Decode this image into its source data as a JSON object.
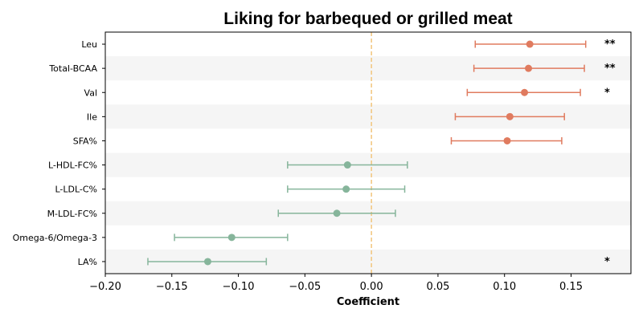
{
  "chart_data": {
    "type": "scatter",
    "title": "Liking for barbequed or grilled meat",
    "xlabel": "Coefficient",
    "ylabel": "",
    "xlim": [
      -0.2,
      0.195
    ],
    "xticks": [
      -0.2,
      -0.15,
      -0.1,
      -0.05,
      0.0,
      0.05,
      0.1,
      0.15
    ],
    "xtick_labels": [
      "−0.20",
      "−0.15",
      "−0.10",
      "−0.05",
      "0.00",
      "0.05",
      "0.10",
      "0.15"
    ],
    "reference_line": 0.0,
    "row_striping": true,
    "colors": {
      "positive": "#E07B5F",
      "negative": "#86B59B",
      "reference": "#F2C57C",
      "stripe": "#F5F5F5"
    },
    "rows": [
      {
        "label": "Leu",
        "estimate": 0.119,
        "lower": 0.078,
        "upper": 0.161,
        "significance": "**"
      },
      {
        "label": "Total-BCAA",
        "estimate": 0.118,
        "lower": 0.077,
        "upper": 0.16,
        "significance": "**"
      },
      {
        "label": "Val",
        "estimate": 0.115,
        "lower": 0.072,
        "upper": 0.157,
        "significance": "*"
      },
      {
        "label": "Ile",
        "estimate": 0.104,
        "lower": 0.063,
        "upper": 0.145,
        "significance": ""
      },
      {
        "label": "SFA%",
        "estimate": 0.102,
        "lower": 0.06,
        "upper": 0.143,
        "significance": ""
      },
      {
        "label": "L-HDL-FC%",
        "estimate": -0.018,
        "lower": -0.063,
        "upper": 0.027,
        "significance": ""
      },
      {
        "label": "L-LDL-C%",
        "estimate": -0.019,
        "lower": -0.063,
        "upper": 0.025,
        "significance": ""
      },
      {
        "label": "M-LDL-FC%",
        "estimate": -0.026,
        "lower": -0.07,
        "upper": 0.018,
        "significance": ""
      },
      {
        "label": "Omega-6/Omega-3",
        "estimate": -0.105,
        "lower": -0.148,
        "upper": -0.063,
        "significance": ""
      },
      {
        "label": "LA%",
        "estimate": -0.123,
        "lower": -0.168,
        "upper": -0.079,
        "significance": "*"
      }
    ]
  }
}
